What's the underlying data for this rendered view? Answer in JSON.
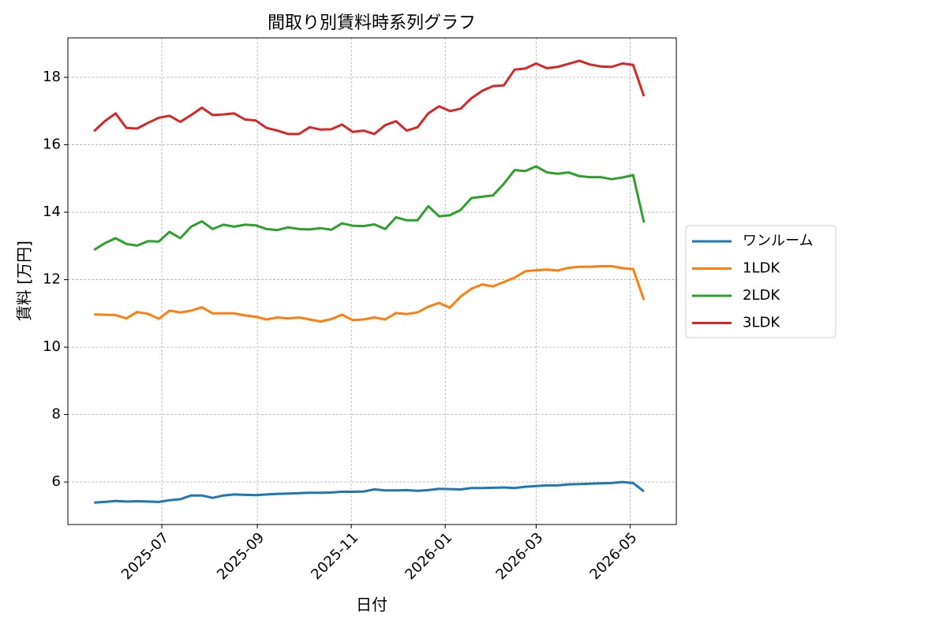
{
  "chart_data": {
    "type": "line",
    "title": "間取り別賃料時系列グラフ",
    "x_label": "日付",
    "y_label": "賃料 [万円]",
    "x": [
      "2025-05-18",
      "2025-05-25",
      "2025-06-01",
      "2025-06-08",
      "2025-06-15",
      "2025-06-22",
      "2025-06-29",
      "2025-07-06",
      "2025-07-13",
      "2025-07-20",
      "2025-07-27",
      "2025-08-03",
      "2025-08-10",
      "2025-08-17",
      "2025-08-24",
      "2025-08-31",
      "2025-09-07",
      "2025-09-14",
      "2025-09-21",
      "2025-09-28",
      "2025-10-05",
      "2025-10-12",
      "2025-10-19",
      "2025-10-26",
      "2025-11-02",
      "2025-11-09",
      "2025-11-16",
      "2025-11-23",
      "2025-11-30",
      "2025-12-07",
      "2025-12-14",
      "2025-12-21",
      "2025-12-28",
      "2026-01-04",
      "2026-01-11",
      "2026-01-18",
      "2026-01-25",
      "2026-02-01",
      "2026-02-08",
      "2026-02-15",
      "2026-02-22",
      "2026-03-01",
      "2026-03-08",
      "2026-03-15",
      "2026-03-22",
      "2026-03-29",
      "2026-04-05",
      "2026-04-12",
      "2026-04-19",
      "2026-04-26",
      "2026-05-03",
      "2026-05-10"
    ],
    "series": [
      {
        "name": "ワンルーム",
        "color": "#1f77b4",
        "values": [
          5.39,
          5.41,
          5.44,
          5.42,
          5.43,
          5.42,
          5.41,
          5.46,
          5.49,
          5.6,
          5.6,
          5.53,
          5.6,
          5.63,
          5.62,
          5.61,
          5.63,
          5.65,
          5.66,
          5.67,
          5.68,
          5.68,
          5.69,
          5.71,
          5.71,
          5.72,
          5.78,
          5.75,
          5.75,
          5.76,
          5.74,
          5.76,
          5.8,
          5.79,
          5.78,
          5.82,
          5.82,
          5.83,
          5.84,
          5.82,
          5.86,
          5.88,
          5.9,
          5.9,
          5.93,
          5.94,
          5.95,
          5.96,
          5.97,
          6.0,
          5.97,
          5.72
        ]
      },
      {
        "name": "1LDK",
        "color": "#ff7f0e",
        "values": [
          10.97,
          10.96,
          10.95,
          10.85,
          11.04,
          10.99,
          10.84,
          11.08,
          11.03,
          11.08,
          11.18,
          11.0,
          11.0,
          11.0,
          10.94,
          10.9,
          10.82,
          10.88,
          10.85,
          10.88,
          10.82,
          10.76,
          10.83,
          10.96,
          10.8,
          10.82,
          10.88,
          10.82,
          11.01,
          10.98,
          11.03,
          11.2,
          11.31,
          11.17,
          11.5,
          11.73,
          11.86,
          11.8,
          11.93,
          12.06,
          12.25,
          12.28,
          12.3,
          12.27,
          12.35,
          12.38,
          12.38,
          12.4,
          12.4,
          12.34,
          12.31,
          11.4
        ]
      },
      {
        "name": "2LDK",
        "color": "#2ca02c",
        "values": [
          12.88,
          13.08,
          13.23,
          13.06,
          13.01,
          13.14,
          13.13,
          13.42,
          13.23,
          13.57,
          13.73,
          13.5,
          13.63,
          13.57,
          13.63,
          13.61,
          13.5,
          13.47,
          13.55,
          13.5,
          13.49,
          13.53,
          13.48,
          13.67,
          13.6,
          13.59,
          13.64,
          13.5,
          13.85,
          13.76,
          13.76,
          14.18,
          13.88,
          13.91,
          14.07,
          14.42,
          14.46,
          14.5,
          14.84,
          15.25,
          15.22,
          15.36,
          15.18,
          15.14,
          15.18,
          15.07,
          15.04,
          15.04,
          14.98,
          15.03,
          15.1,
          13.7
        ]
      },
      {
        "name": "3LDK",
        "color": "#d62728",
        "values": [
          16.4,
          16.7,
          16.93,
          16.5,
          16.48,
          16.65,
          16.8,
          16.86,
          16.68,
          16.88,
          17.1,
          16.88,
          16.9,
          16.93,
          16.75,
          16.72,
          16.5,
          16.42,
          16.32,
          16.32,
          16.52,
          16.45,
          16.46,
          16.6,
          16.38,
          16.42,
          16.32,
          16.58,
          16.7,
          16.42,
          16.52,
          16.93,
          17.14,
          17.0,
          17.07,
          17.38,
          17.6,
          17.74,
          17.76,
          18.23,
          18.26,
          18.41,
          18.27,
          18.31,
          18.4,
          18.49,
          18.38,
          18.32,
          18.31,
          18.41,
          18.37,
          17.44
        ]
      }
    ],
    "xlim": [
      "2025-05-01",
      "2026-05-31"
    ],
    "xticks": [
      {
        "value": "2025-07-01",
        "label": "2025-07"
      },
      {
        "value": "2025-09-01",
        "label": "2025-09"
      },
      {
        "value": "2025-11-01",
        "label": "2025-11"
      },
      {
        "value": "2026-01-01",
        "label": "2026-01"
      },
      {
        "value": "2026-03-01",
        "label": "2026-03"
      },
      {
        "value": "2026-05-01",
        "label": "2026-05"
      }
    ],
    "ylim": [
      4.74,
      19.17
    ],
    "yticks": [
      6,
      8,
      10,
      12,
      14,
      16,
      18
    ],
    "grid": true,
    "legend": "outside right"
  }
}
